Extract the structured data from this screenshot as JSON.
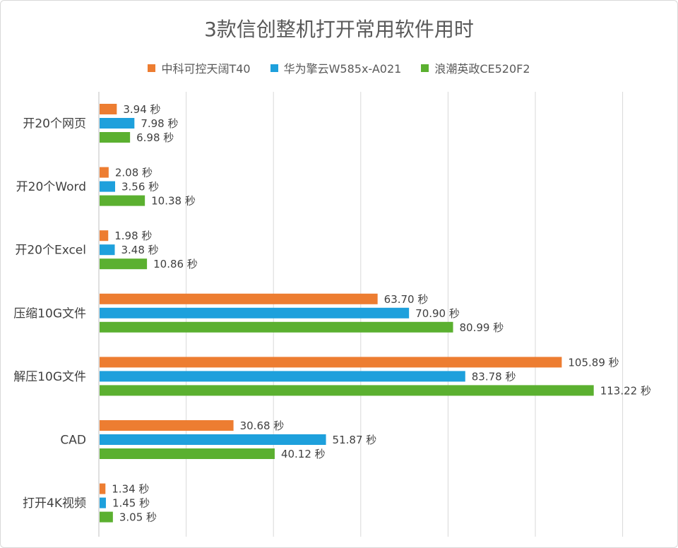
{
  "chart_data": {
    "type": "bar",
    "orientation": "horizontal",
    "title": "3款信创整机打开常用软件用时",
    "categories": [
      "开20个网页",
      "开20个Word",
      "开20个Excel",
      "压缩10G文件",
      "解压10G文件",
      "CAD",
      "打开4K视频"
    ],
    "series": [
      {
        "name": "中科可控天阔T40",
        "color": "#ed7d31",
        "values": [
          3.94,
          2.08,
          1.98,
          63.7,
          105.89,
          30.68,
          1.34
        ]
      },
      {
        "name": "华为擎云W585x-A021",
        "color": "#1ea0dc",
        "values": [
          7.98,
          3.56,
          3.48,
          70.9,
          83.78,
          51.87,
          1.45
        ]
      },
      {
        "name": "浪潮英政CE520F2",
        "color": "#5bb030",
        "values": [
          6.98,
          10.38,
          10.86,
          80.99,
          113.22,
          40.12,
          3.05
        ]
      }
    ],
    "value_suffix": " 秒",
    "xlim": [
      0,
      120
    ],
    "grid": true,
    "legend_position": "top"
  }
}
